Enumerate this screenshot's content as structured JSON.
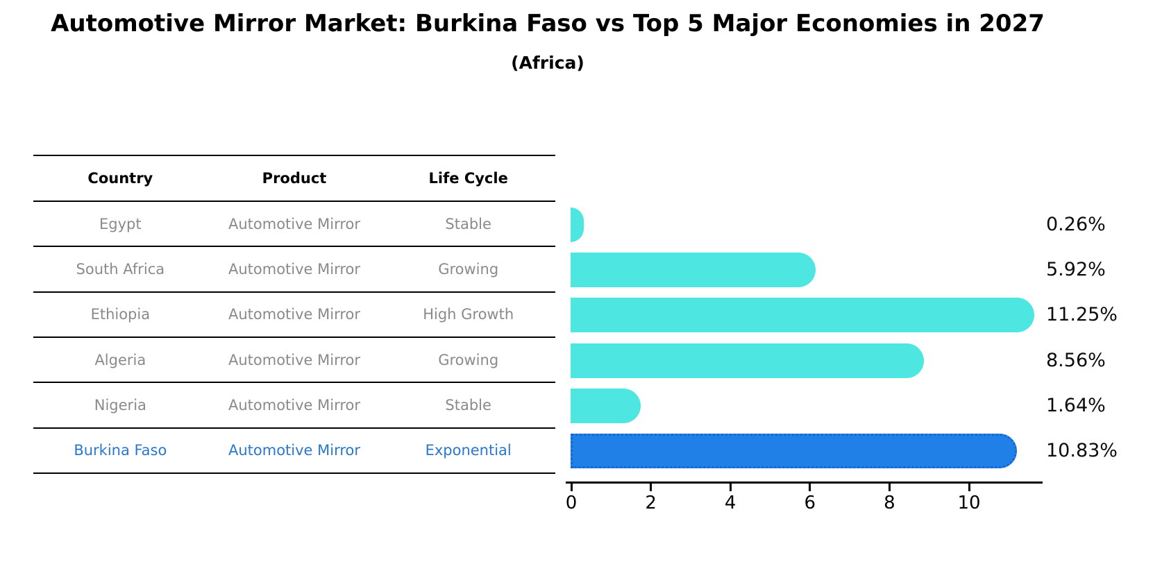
{
  "title": "Automotive Mirror Market: Burkina Faso vs Top 5 Major Economies in 2027",
  "subtitle": "(Africa)",
  "table": {
    "headers": [
      "Country",
      "Product",
      "Life Cycle"
    ],
    "rows": [
      {
        "country": "Egypt",
        "product": "Automotive Mirror",
        "life_cycle": "Stable",
        "highlight": false
      },
      {
        "country": "South Africa",
        "product": "Automotive Mirror",
        "life_cycle": "Growing",
        "highlight": false
      },
      {
        "country": "Ethiopia",
        "product": "Automotive Mirror",
        "life_cycle": "High Growth",
        "highlight": false
      },
      {
        "country": "Algeria",
        "product": "Automotive Mirror",
        "life_cycle": "Growing",
        "highlight": false
      },
      {
        "country": "Nigeria",
        "product": "Automotive Mirror",
        "life_cycle": "Stable",
        "highlight": false
      },
      {
        "country": "Burkina Faso",
        "product": "Automotive Mirror",
        "life_cycle": "Exponential",
        "highlight": true
      }
    ]
  },
  "chart_data": {
    "type": "bar",
    "orientation": "horizontal",
    "title": "Automotive Mirror Market: Burkina Faso vs Top 5 Major Economies in 2027",
    "subtitle": "(Africa)",
    "categories": [
      "Egypt",
      "South Africa",
      "Ethiopia",
      "Algeria",
      "Nigeria",
      "Burkina Faso"
    ],
    "values": [
      0.26,
      5.92,
      11.25,
      8.56,
      1.64,
      10.83
    ],
    "value_labels": [
      "0.26%",
      "5.92%",
      "11.25%",
      "8.56%",
      "1.64%",
      "10.83%"
    ],
    "xlabel": "",
    "ylabel": "",
    "xticks": [
      0,
      2,
      4,
      6,
      8,
      10
    ],
    "xlim": [
      0,
      11.8
    ],
    "grid": false,
    "legend": false,
    "highlight_index": 5,
    "bar_color": "#4DE6E1",
    "highlight_bar_color": "#2080E8",
    "highlight_border_color": "#1668CE"
  },
  "colors": {
    "title_text": "#000000",
    "header_text": "#000000",
    "row_text": "#8a8a8a",
    "highlight_text": "#2878CF",
    "axis_line": "#000000"
  }
}
